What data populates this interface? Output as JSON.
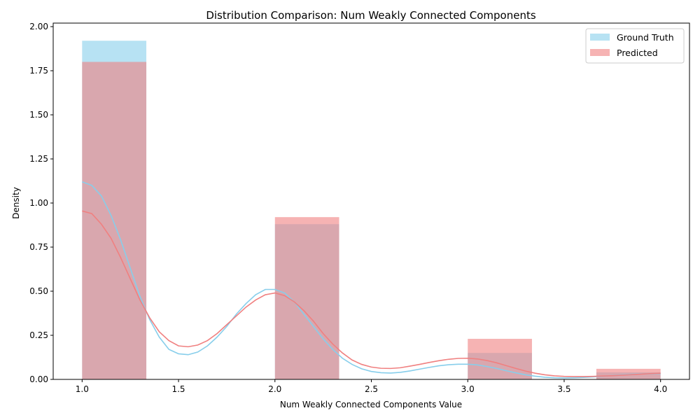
{
  "chart_data": {
    "type": "bar",
    "title": "Distribution Comparison: Num Weakly Connected Components",
    "xlabel": "Num Weakly Connected Components Value",
    "ylabel": "Density",
    "xlim": [
      0.85,
      4.15
    ],
    "ylim": [
      0,
      2.02
    ],
    "x_ticks": [
      1.0,
      1.5,
      2.0,
      2.5,
      3.0,
      3.5,
      4.0
    ],
    "x_tick_labels": [
      "1.0",
      "1.5",
      "2.0",
      "2.5",
      "3.0",
      "3.5",
      "4.0"
    ],
    "y_ticks": [
      0,
      0.25,
      0.5,
      0.75,
      1.0,
      1.25,
      1.5,
      1.75,
      2.0
    ],
    "y_tick_labels": [
      "0.00",
      "0.25",
      "0.50",
      "0.75",
      "1.00",
      "1.25",
      "1.50",
      "1.75",
      "2.00"
    ],
    "bin_edges": [
      1.0,
      1.333,
      1.667,
      2.0,
      2.333,
      2.667,
      3.0,
      3.333,
      3.667,
      4.0
    ],
    "grid": false,
    "legend_position": "top-right",
    "series": [
      {
        "name": "Ground Truth",
        "color": "#87ceeb",
        "densities": [
          1.92,
          0,
          0,
          0.88,
          0,
          0,
          0.15,
          0,
          0.04
        ],
        "kde": {
          "x": [
            1.0,
            1.05,
            1.1,
            1.15,
            1.2,
            1.25,
            1.3,
            1.35,
            1.4,
            1.45,
            1.5,
            1.55,
            1.6,
            1.65,
            1.7,
            1.75,
            1.8,
            1.85,
            1.9,
            1.95,
            2.0,
            2.05,
            2.1,
            2.15,
            2.2,
            2.25,
            2.3,
            2.35,
            2.4,
            2.45,
            2.5,
            2.55,
            2.6,
            2.65,
            2.7,
            2.75,
            2.8,
            2.85,
            2.9,
            2.95,
            3.0,
            3.05,
            3.1,
            3.15,
            3.2,
            3.25,
            3.3,
            3.35,
            3.4,
            3.45,
            3.5,
            3.55,
            3.6,
            3.65,
            3.7,
            3.75,
            3.8,
            3.85,
            3.9,
            3.95,
            4.0
          ],
          "y": [
            1.12,
            1.1,
            1.04,
            0.93,
            0.79,
            0.63,
            0.47,
            0.34,
            0.24,
            0.17,
            0.145,
            0.14,
            0.155,
            0.19,
            0.24,
            0.3,
            0.37,
            0.43,
            0.48,
            0.51,
            0.51,
            0.49,
            0.44,
            0.37,
            0.3,
            0.23,
            0.17,
            0.12,
            0.085,
            0.06,
            0.045,
            0.038,
            0.036,
            0.04,
            0.048,
            0.058,
            0.068,
            0.077,
            0.083,
            0.086,
            0.086,
            0.082,
            0.073,
            0.062,
            0.049,
            0.037,
            0.026,
            0.018,
            0.012,
            0.009,
            0.008,
            0.009,
            0.011,
            0.014,
            0.018,
            0.022,
            0.026,
            0.029,
            0.031,
            0.032,
            0.033
          ]
        }
      },
      {
        "name": "Predicted",
        "color": "#f08080",
        "densities": [
          1.8,
          0,
          0,
          0.92,
          0,
          0,
          0.23,
          0,
          0.06
        ],
        "kde": {
          "x": [
            1.0,
            1.05,
            1.1,
            1.15,
            1.2,
            1.25,
            1.3,
            1.35,
            1.4,
            1.45,
            1.5,
            1.55,
            1.6,
            1.65,
            1.7,
            1.75,
            1.8,
            1.85,
            1.9,
            1.95,
            2.0,
            2.05,
            2.1,
            2.15,
            2.2,
            2.25,
            2.3,
            2.35,
            2.4,
            2.45,
            2.5,
            2.55,
            2.6,
            2.65,
            2.7,
            2.75,
            2.8,
            2.85,
            2.9,
            2.95,
            3.0,
            3.05,
            3.1,
            3.15,
            3.2,
            3.25,
            3.3,
            3.35,
            3.4,
            3.45,
            3.5,
            3.55,
            3.6,
            3.65,
            3.7,
            3.75,
            3.8,
            3.85,
            3.9,
            3.95,
            4.0
          ],
          "y": [
            0.955,
            0.94,
            0.88,
            0.8,
            0.69,
            0.57,
            0.45,
            0.35,
            0.27,
            0.22,
            0.19,
            0.185,
            0.195,
            0.22,
            0.26,
            0.31,
            0.36,
            0.41,
            0.45,
            0.48,
            0.49,
            0.475,
            0.44,
            0.39,
            0.33,
            0.26,
            0.2,
            0.15,
            0.11,
            0.085,
            0.07,
            0.063,
            0.062,
            0.066,
            0.075,
            0.085,
            0.096,
            0.106,
            0.114,
            0.119,
            0.12,
            0.116,
            0.107,
            0.094,
            0.078,
            0.062,
            0.047,
            0.035,
            0.026,
            0.02,
            0.017,
            0.016,
            0.016,
            0.017,
            0.019,
            0.021,
            0.024,
            0.027,
            0.03,
            0.033,
            0.035
          ]
        }
      }
    ]
  }
}
